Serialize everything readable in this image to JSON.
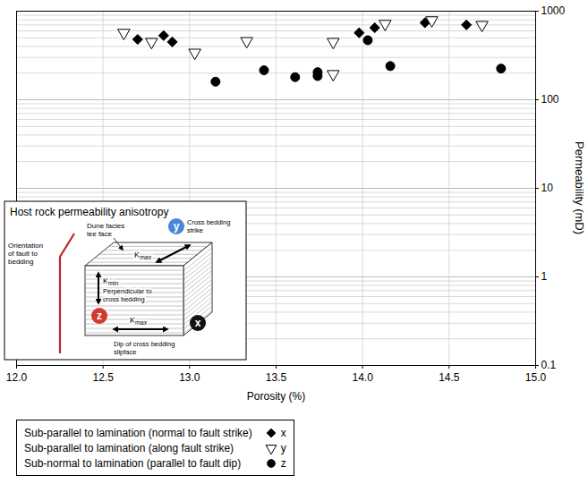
{
  "chart_data": {
    "type": "scatter",
    "x_label": "Porosity (%)",
    "y_label": "Permeability (mD)",
    "xlim": [
      12,
      15
    ],
    "ylim": [
      0.1,
      1000
    ],
    "xticks": [
      {
        "value": 12,
        "label": "12.0"
      },
      12.5,
      {
        "value": 13,
        "label": "13.0"
      },
      13.5,
      {
        "value": 14,
        "label": "14.0"
      },
      14.5,
      {
        "value": 15,
        "label": "15.0"
      }
    ],
    "yticks": [
      0.1,
      1,
      10,
      100,
      1000
    ],
    "log": "y",
    "grid": true,
    "legend": "bottom",
    "series": [
      {
        "name": "Sub-parallel to lamination (normal to fault strike)",
        "key": "x",
        "color": "#000000",
        "marker": "diamond",
        "x": [
          12.7,
          12.85,
          12.9,
          13.98,
          14.07,
          14.36,
          14.6
        ],
        "values": [
          480,
          530,
          450,
          570,
          650,
          740,
          700
        ]
      },
      {
        "name": "Sub-parallel to lamination (along fault strike)",
        "key": "y",
        "color": "#000000",
        "marker": "triangle-down-open",
        "x": [
          12.62,
          12.78,
          13.03,
          13.33,
          13.83,
          13.83,
          14.13,
          14.4,
          14.69
        ],
        "values": [
          570,
          450,
          340,
          460,
          195,
          450,
          720,
          790,
          700
        ]
      },
      {
        "name": "Sub-normal to lamination (parallel to fault dip)",
        "key": "z",
        "color": "#000000",
        "marker": "circle",
        "x": [
          13.15,
          13.43,
          13.61,
          13.74,
          13.74,
          14.03,
          14.16,
          14.8
        ],
        "values": [
          160,
          215,
          180,
          185,
          205,
          470,
          240,
          225
        ]
      }
    ],
    "inset": {
      "title": "Host rock permeability anisotropy",
      "fault_label": "Orientation of fault to bedding",
      "face_label": "Dune facies lee face",
      "k_symbol": "K",
      "directions": [
        {
          "key": "y",
          "color": "#4a86d8",
          "text": "Cross bedding strike",
          "k": "max"
        },
        {
          "key": "z",
          "color": "#d23a2e",
          "text": "Perpendicular to cross bedding",
          "k": "min"
        },
        {
          "key": "x",
          "color": "#111111",
          "text": "Dip of cross bedding slipface",
          "k": "max"
        }
      ]
    }
  }
}
